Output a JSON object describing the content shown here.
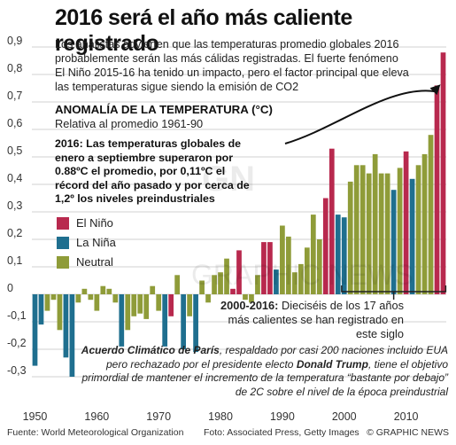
{
  "header": {
    "title": "2016 será el año más caliente registrado",
    "intro": "Los analistas advierten que las temperaturas promedio globales 2016 probablemente serán las más cálidas registradas. El fuerte fenómeno El Niño 2015-16 ha tenido un impacto, pero el factor principal que eleva las temperaturas sigue siendo la emisión de CO2"
  },
  "section": {
    "title": "ANOMALÍA DE LA TEMPERATURA (°C)",
    "subtitle": "Relativa al promedio 1961-90",
    "highlight": "2016: Las temperaturas globales de enero a septiembre superaron por 0.88ºC el promedio, por 0,11ºC el récord del año pasado y por cerca de 1,2º los niveles preindustriales"
  },
  "callout": {
    "bold": "2000-2016:",
    "text": " Dieciséis de los 17 años más calientes se han registrado en este siglo"
  },
  "note": {
    "part1": "Acuerdo Climático de París",
    "part2": ", respaldado por casi 200 naciones incluido EUA pero rechazado por el presidente electo ",
    "part3": "Donald Trump",
    "part4": ", tiene el objetivo primordial de mantener el incremento de la temperatura “bastante por debajo” de 2C sobre el nivel de la época preindustrial"
  },
  "footer": {
    "source": "Fuente: World Meteorological Organization",
    "photo": "Foto: Associated Press, Getty Images",
    "credit": "© GRAPHIC NEWS"
  },
  "watermark": {
    "logo": "GN",
    "text": "GRAPHIC NEWS"
  },
  "colors": {
    "elnino": "#b8294e",
    "lanina": "#1f6f8f",
    "neutral": "#8f9c39",
    "grid": "#d2d2d2",
    "axis_text": "#333333"
  },
  "chart_data": {
    "type": "bar",
    "title": "ANOMALÍA DE LA TEMPERATURA (°C)",
    "subtitle": "Relativa al promedio 1961-90",
    "ylim": [
      -0.35,
      0.9
    ],
    "yticks": [
      -0.3,
      -0.2,
      -0.1,
      0,
      0.1,
      0.2,
      0.3,
      0.4,
      0.5,
      0.6,
      0.7,
      0.8,
      0.9
    ],
    "ytick_labels": [
      "-0,3",
      "-0,2",
      "-0,1",
      "0",
      "0,1",
      "0,2",
      "0,3",
      "0,4",
      "0,5",
      "0,6",
      "0,7",
      "0,8",
      "0,9"
    ],
    "xticks": [
      1950,
      1960,
      1970,
      1980,
      1990,
      2000,
      2010
    ],
    "xlim": [
      1949.5,
      2016.5
    ],
    "legend": {
      "placement": "left",
      "entries": [
        {
          "key": "elnino",
          "label": "El Niño"
        },
        {
          "key": "lanina",
          "label": "La Niña"
        },
        {
          "key": "neutral",
          "label": "Neutral"
        }
      ]
    },
    "years": [
      1950,
      1951,
      1952,
      1953,
      1954,
      1955,
      1956,
      1957,
      1958,
      1959,
      1960,
      1961,
      1962,
      1963,
      1964,
      1965,
      1966,
      1967,
      1968,
      1969,
      1970,
      1971,
      1972,
      1973,
      1974,
      1975,
      1976,
      1977,
      1978,
      1979,
      1980,
      1981,
      1982,
      1983,
      1984,
      1985,
      1986,
      1987,
      1988,
      1989,
      1990,
      1991,
      1992,
      1993,
      1994,
      1995,
      1996,
      1997,
      1998,
      1999,
      2000,
      2001,
      2002,
      2003,
      2004,
      2005,
      2006,
      2007,
      2008,
      2009,
      2010,
      2011,
      2012,
      2013,
      2014,
      2015,
      2016
    ],
    "values": [
      -0.26,
      -0.11,
      -0.06,
      -0.02,
      -0.13,
      -0.23,
      -0.3,
      -0.03,
      0.02,
      -0.02,
      -0.06,
      0.03,
      0.02,
      -0.03,
      -0.19,
      -0.13,
      -0.08,
      -0.07,
      -0.09,
      0.03,
      -0.06,
      -0.19,
      -0.08,
      0.07,
      -0.2,
      -0.08,
      -0.21,
      0.05,
      -0.03,
      0.07,
      0.08,
      0.13,
      0.02,
      0.16,
      -0.02,
      -0.03,
      0.07,
      0.19,
      0.19,
      0.09,
      0.25,
      0.21,
      0.08,
      0.11,
      0.17,
      0.29,
      0.2,
      0.35,
      0.53,
      0.29,
      0.28,
      0.41,
      0.47,
      0.47,
      0.44,
      0.51,
      0.44,
      0.44,
      0.38,
      0.46,
      0.52,
      0.42,
      0.47,
      0.51,
      0.58,
      0.76,
      0.88
    ],
    "phases": [
      "lanina",
      "lanina",
      "neutral",
      "neutral",
      "neutral",
      "lanina",
      "lanina",
      "neutral",
      "neutral",
      "neutral",
      "neutral",
      "neutral",
      "neutral",
      "neutral",
      "lanina",
      "neutral",
      "neutral",
      "neutral",
      "neutral",
      "neutral",
      "neutral",
      "lanina",
      "elnino",
      "neutral",
      "lanina",
      "neutral",
      "lanina",
      "neutral",
      "neutral",
      "neutral",
      "neutral",
      "neutral",
      "elnino",
      "elnino",
      "neutral",
      "neutral",
      "neutral",
      "elnino",
      "elnino",
      "lanina",
      "neutral",
      "neutral",
      "neutral",
      "neutral",
      "neutral",
      "neutral",
      "neutral",
      "elnino",
      "elnino",
      "lanina",
      "lanina",
      "neutral",
      "neutral",
      "neutral",
      "neutral",
      "neutral",
      "neutral",
      "neutral",
      "lanina",
      "neutral",
      "elnino",
      "lanina",
      "neutral",
      "neutral",
      "neutral",
      "elnino",
      "elnino"
    ]
  }
}
